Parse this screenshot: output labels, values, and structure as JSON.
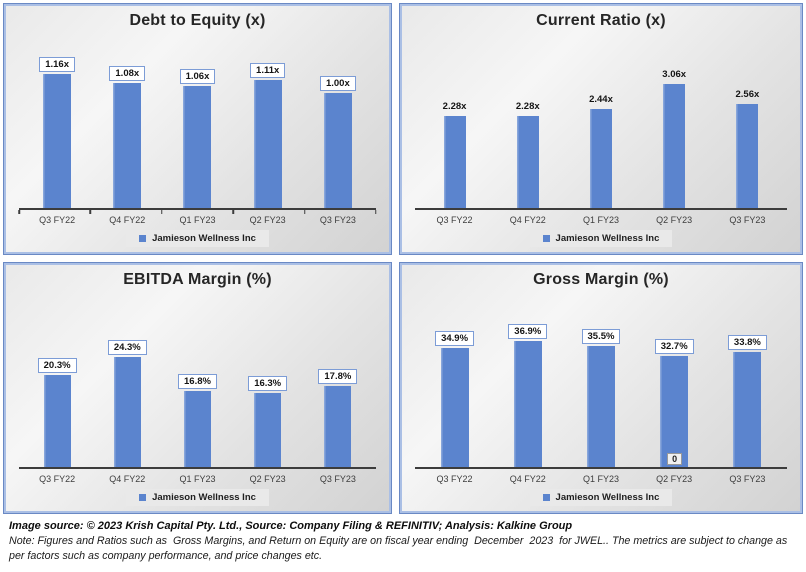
{
  "chart_data": [
    {
      "type": "bar",
      "title": "Debt to Equity (x)",
      "categories": [
        "Q3 FY22",
        "Q4 FY22",
        "Q1 FY23",
        "Q2 FY23",
        "Q3 FY23"
      ],
      "values": [
        1.16,
        1.08,
        1.06,
        1.11,
        1.0
      ],
      "labels": [
        "1.16x",
        "1.08x",
        "1.06x",
        "1.11x",
        "1.00x"
      ],
      "label_style": "boxed",
      "ylim": [
        0,
        1.3
      ],
      "axis_ticks": true,
      "grid": "off",
      "legend": "Jamieson Wellness Inc",
      "legend_position": "bottom"
    },
    {
      "type": "bar",
      "title": "Current Ratio (x)",
      "categories": [
        "Q3 FY22",
        "Q4 FY22",
        "Q1 FY23",
        "Q2 FY23",
        "Q3 FY23"
      ],
      "values": [
        2.28,
        2.28,
        2.44,
        3.06,
        2.56
      ],
      "labels": [
        "2.28x",
        "2.28x",
        "2.44x",
        "3.06x",
        "2.56x"
      ],
      "label_style": "plain",
      "ylim": [
        0,
        3.7
      ],
      "axis_ticks": false,
      "grid": "off",
      "legend": "Jamieson Wellness Inc",
      "legend_position": "bottom"
    },
    {
      "type": "bar",
      "title": "EBITDA Margin (%)",
      "categories": [
        "Q3 FY22",
        "Q4 FY22",
        "Q1 FY23",
        "Q2 FY23",
        "Q3 FY23"
      ],
      "values": [
        20.3,
        24.3,
        16.8,
        16.3,
        17.8
      ],
      "labels": [
        "20.3%",
        "24.3%",
        "16.8%",
        "16.3%",
        "17.8%"
      ],
      "label_style": "boxed",
      "ylim": [
        0,
        33
      ],
      "axis_ticks": false,
      "grid": "off",
      "legend": "Jamieson Wellness Inc",
      "legend_position": "bottom"
    },
    {
      "type": "bar",
      "title": "Gross Margin (%)",
      "categories": [
        "Q3 FY22",
        "Q4 FY22",
        "Q1 FY23",
        "Q2 FY23",
        "Q3 FY23"
      ],
      "values": [
        34.9,
        36.9,
        35.5,
        32.7,
        33.8
      ],
      "labels": [
        "34.9%",
        "36.9%",
        "35.5%",
        "32.7%",
        "33.8%"
      ],
      "label_style": "boxed",
      "ylim": [
        0,
        44
      ],
      "axis_ticks": false,
      "grid": "off",
      "legend": "Jamieson Wellness Inc",
      "legend_position": "bottom",
      "annotations": [
        "0"
      ]
    }
  ],
  "footer": {
    "source_line": "Image source: © 2023 Krish Capital Pty. Ltd., Source: Company Filing & REFINITIV; Analysis: Kalkine Group",
    "note": "Note: Figures and Ratios such as  Gross Margins, and Return on Equity are on fiscal year ending  December  2023  for JWEL.. The metrics are subject to change as per factors such as company performance, and price changes etc."
  },
  "colors": {
    "bar": "#5B84CE",
    "panel_border": "#6A89C4",
    "panel_border_inner": "#AABFE5",
    "label_box_border": "#7C9CD6",
    "axis": "#3C3C3C"
  }
}
